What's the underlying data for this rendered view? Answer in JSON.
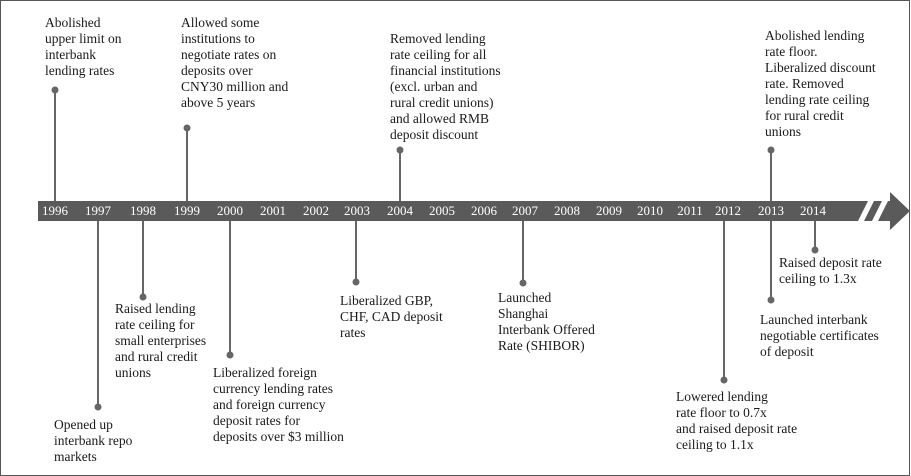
{
  "timeline": {
    "years": [
      "1996",
      "1997",
      "1998",
      "1999",
      "2000",
      "2001",
      "2002",
      "2003",
      "2004",
      "2005",
      "2006",
      "2007",
      "2008",
      "2009",
      "2010",
      "2011",
      "2012",
      "2013",
      "2014"
    ],
    "events": [
      {
        "lines": [
          "Abolished",
          "upper limit on",
          "interbank",
          "lending rates"
        ]
      },
      {
        "lines": [
          "Allowed some",
          "institutions to",
          "negotiate rates on",
          "deposits over",
          "CNY30 million and",
          "above 5 years"
        ]
      },
      {
        "lines": [
          "Removed lending",
          "rate ceiling for all",
          "financial institutions",
          "(excl. urban and",
          "rural credit unions)",
          "and allowed RMB",
          "deposit discount"
        ]
      },
      {
        "lines": [
          "Abolished lending",
          "rate floor.",
          "Liberalized discount",
          "rate. Removed",
          "lending rate ceiling",
          "for rural credit",
          "unions"
        ]
      },
      {
        "lines": [
          "Opened up",
          "interbank repo",
          "markets"
        ]
      },
      {
        "lines": [
          "Raised lending",
          "rate ceiling for",
          "small enterprises",
          "and rural credit",
          "unions"
        ]
      },
      {
        "lines": [
          "Liberalized foreign",
          "currency lending rates",
          "and foreign currency",
          "deposit rates for",
          "deposits over $3 million"
        ]
      },
      {
        "lines": [
          "Liberalized GBP,",
          "CHF, CAD deposit",
          "rates"
        ]
      },
      {
        "lines": [
          "Launched",
          "Shanghai",
          "Interbank Offered",
          "Rate (SHIBOR)"
        ]
      },
      {
        "lines": [
          "Lowered lending",
          "rate floor to 0.7x",
          "and raised deposit rate",
          "ceiling to 1.1x"
        ]
      },
      {
        "lines": [
          "Launched interbank",
          "negotiable certificates",
          "of deposit"
        ]
      },
      {
        "lines": [
          "Raised deposit rate",
          "ceiling to 1.3x"
        ]
      }
    ]
  }
}
